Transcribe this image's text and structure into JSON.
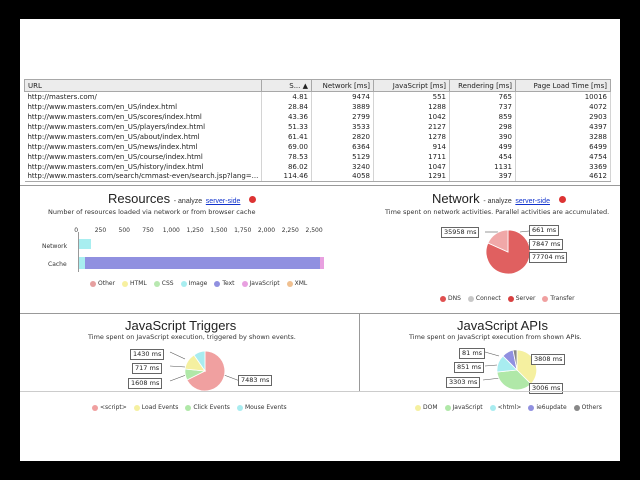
{
  "table": {
    "headers": [
      "URL",
      "S...",
      "Network [ms]",
      "JavaScript [ms]",
      "Rendering [ms]",
      "Page Load Time [ms]"
    ],
    "rows": [
      [
        "http://masters.com/",
        "4.81",
        "9474",
        "551",
        "765",
        "10016"
      ],
      [
        "http://www.masters.com/en_US/index.html",
        "28.84",
        "3889",
        "1288",
        "737",
        "4072"
      ],
      [
        "http://www.masters.com/en_US/scores/index.html",
        "43.36",
        "2799",
        "1042",
        "859",
        "2903"
      ],
      [
        "http://www.masters.com/en_US/players/index.html",
        "51.33",
        "3533",
        "2127",
        "298",
        "4397"
      ],
      [
        "http://www.masters.com/en_US/about/index.html",
        "61.41",
        "2820",
        "1278",
        "390",
        "3288"
      ],
      [
        "http://www.masters.com/en_US/news/index.html",
        "69.00",
        "6364",
        "914",
        "499",
        "6499"
      ],
      [
        "http://www.masters.com/en_US/course/index.html",
        "78.53",
        "5129",
        "1711",
        "454",
        "4754"
      ],
      [
        "http://www.masters.com/en_US/history/index.html",
        "86.02",
        "3240",
        "1047",
        "1131",
        "3369"
      ],
      [
        "http://www.masters.com/search/cmmast-even/search.jsp?lang=...",
        "114.46",
        "4058",
        "1291",
        "397",
        "4612"
      ]
    ]
  },
  "resources": {
    "title": "Resources",
    "analyze_text": "- analyze",
    "link": "server-side",
    "subtitle": "Number of resources loaded via network or from browser cache",
    "ticks": [
      "0",
      "250",
      "500",
      "750",
      "1,000",
      "1,250",
      "1,500",
      "1,750",
      "2,000",
      "2,250",
      "2,500"
    ],
    "rows": [
      "Network",
      "Cache"
    ],
    "legend": [
      "Other",
      "HTML",
      "CSS",
      "Image",
      "Text",
      "JavaScript",
      "XML"
    ],
    "legend_colors": [
      "#e6a0a0",
      "#f7f0a0",
      "#b8e8b0",
      "#a8eef0",
      "#9090e0",
      "#e8a0e0",
      "#f0c090"
    ]
  },
  "network": {
    "title": "Network",
    "analyze_text": "- analyze",
    "link": "server-side",
    "subtitle": "Time spent on network activities. Parallel activities are accumulated.",
    "callouts": [
      "35958 ms",
      "661 ms",
      "7847 ms",
      "77704 ms"
    ],
    "legend": [
      "DNS",
      "Connect",
      "Server",
      "Transfer"
    ],
    "legend_colors": [
      "#e05050",
      "#c8c8c8",
      "#d84040",
      "#f0a0a0"
    ]
  },
  "js_triggers": {
    "title": "JavaScript Triggers",
    "subtitle": "Time spent on JavaScript execution, triggered by shown events.",
    "callouts": [
      "1430 ms",
      "717 ms",
      "1608 ms",
      "7483 ms"
    ],
    "legend": [
      "<script>",
      "Load Events",
      "Click Events",
      "Mouse Events"
    ],
    "legend_colors": [
      "#f0a0a0",
      "#f5f0a0",
      "#b0e8a8",
      "#a8ecf0"
    ]
  },
  "js_apis": {
    "title": "JavaScript APIs",
    "subtitle": "Time spent on JavaScript execution from shown APIs.",
    "callouts": [
      "81 ms",
      "851 ms",
      "3303 ms",
      "3808 ms",
      "3006 ms"
    ],
    "legend": [
      "DOM",
      "JavaScript",
      "<html>",
      "ie6update",
      "Others"
    ],
    "legend_colors": [
      "#f5f0a0",
      "#b0e8a8",
      "#a8ecf0",
      "#9090e0",
      "#888888"
    ]
  }
}
